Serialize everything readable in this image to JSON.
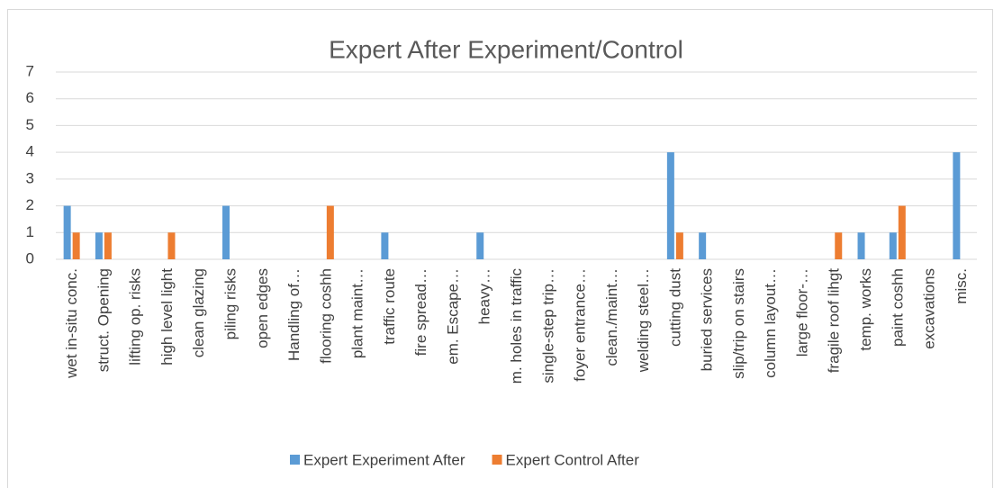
{
  "chart_data": {
    "type": "bar",
    "title": "Expert After Experiment/Control",
    "categories": [
      "wet in-situ conc.",
      "struct. Opening",
      "lifting op. risks",
      "high level light",
      "clean glazing",
      "piling risks",
      "open edges",
      "Handling of…",
      "flooring coshh",
      "plant maint…",
      "traffic route",
      "fire spread…",
      "em. Escape…",
      "heavy…",
      "m. holes in traffic",
      "single-step trip…",
      "foyer entrance…",
      "clean./maint…",
      "welding steel…",
      "cutting dust",
      "buried services",
      "slip/trip on stairs",
      "column layout…",
      "large floor-…",
      "fragile roof lihgt",
      "temp. works",
      "paint coshh",
      "excavations",
      "misc."
    ],
    "series": [
      {
        "name": "Expert Experiment After",
        "color": "#5b9bd5",
        "values": [
          2,
          1,
          0,
          0,
          0,
          2,
          0,
          0,
          0,
          0,
          1,
          0,
          0,
          1,
          0,
          0,
          0,
          0,
          0,
          4,
          1,
          0,
          0,
          0,
          0,
          1,
          1,
          0,
          4
        ]
      },
      {
        "name": "Expert Control After",
        "color": "#ed7d31",
        "values": [
          1,
          1,
          0,
          1,
          0,
          0,
          0,
          0,
          2,
          0,
          0,
          0,
          0,
          0,
          0,
          0,
          0,
          0,
          0,
          1,
          0,
          0,
          0,
          0,
          1,
          0,
          2,
          0,
          0
        ]
      }
    ],
    "ylim": [
      0,
      7
    ],
    "yticks": [
      0,
      1,
      2,
      3,
      4,
      5,
      6,
      7
    ],
    "grid": true,
    "legend": "bottom"
  }
}
